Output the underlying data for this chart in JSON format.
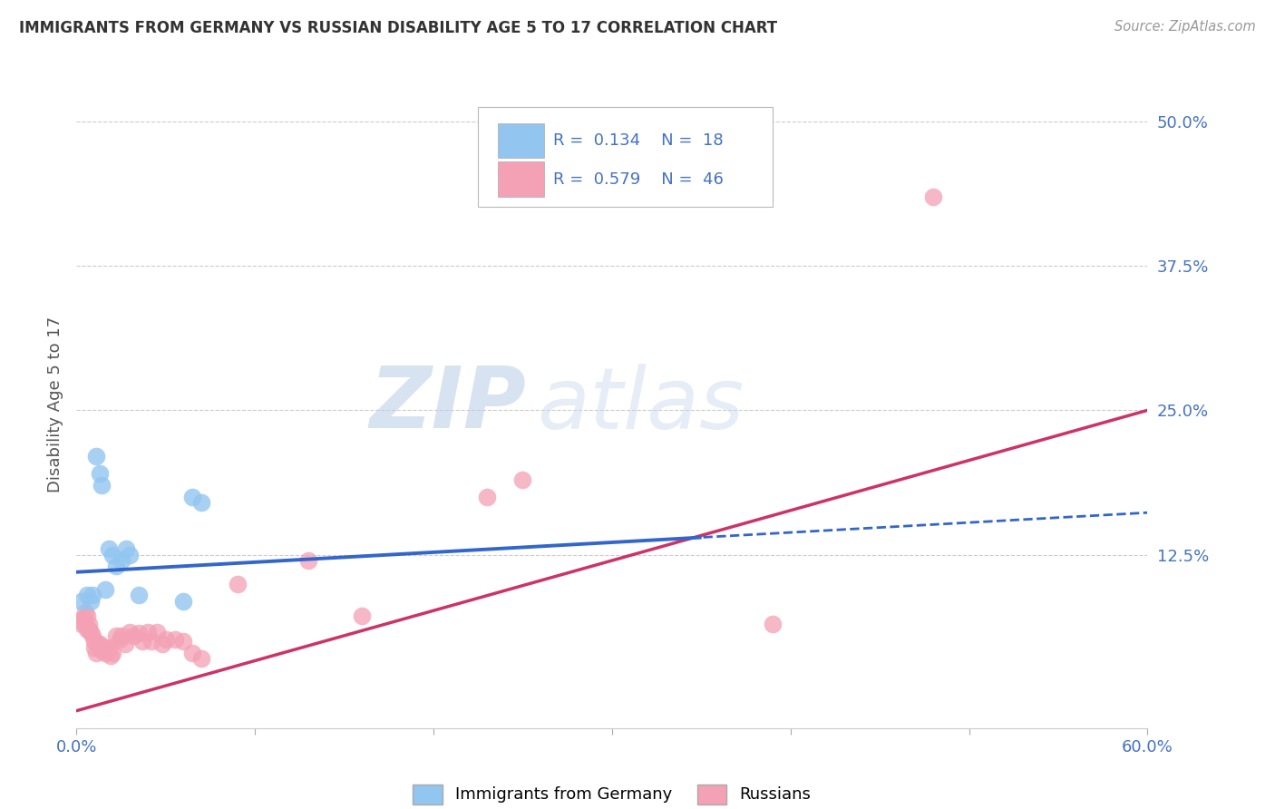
{
  "title": "IMMIGRANTS FROM GERMANY VS RUSSIAN DISABILITY AGE 5 TO 17 CORRELATION CHART",
  "source": "Source: ZipAtlas.com",
  "ylabel": "Disability Age 5 to 17",
  "xlim": [
    0.0,
    0.6
  ],
  "ylim": [
    -0.025,
    0.535
  ],
  "yticks": [
    0.0,
    0.125,
    0.25,
    0.375,
    0.5
  ],
  "ytick_labels": [
    "",
    "12.5%",
    "25.0%",
    "37.5%",
    "50.0%"
  ],
  "xticks": [
    0.0,
    0.1,
    0.2,
    0.3,
    0.4,
    0.5,
    0.6
  ],
  "xtick_labels": [
    "0.0%",
    "",
    "",
    "",
    "",
    "",
    "60.0%"
  ],
  "germany_R": 0.134,
  "germany_N": 18,
  "russian_R": 0.579,
  "russian_N": 46,
  "germany_color": "#92C5F0",
  "russian_color": "#F4A0B5",
  "trendline_germany_color": "#3366CC",
  "trendline_russian_color": "#CC3366",
  "germany_x": [
    0.003,
    0.006,
    0.008,
    0.009,
    0.011,
    0.013,
    0.014,
    0.016,
    0.018,
    0.02,
    0.022,
    0.025,
    0.028,
    0.03,
    0.035,
    0.06,
    0.065,
    0.07
  ],
  "germany_y": [
    0.085,
    0.09,
    0.085,
    0.09,
    0.21,
    0.195,
    0.185,
    0.095,
    0.13,
    0.125,
    0.115,
    0.12,
    0.13,
    0.125,
    0.09,
    0.085,
    0.175,
    0.17
  ],
  "russian_x": [
    0.002,
    0.003,
    0.004,
    0.005,
    0.006,
    0.006,
    0.007,
    0.007,
    0.008,
    0.009,
    0.01,
    0.01,
    0.011,
    0.012,
    0.013,
    0.014,
    0.015,
    0.016,
    0.017,
    0.018,
    0.019,
    0.02,
    0.022,
    0.024,
    0.025,
    0.027,
    0.03,
    0.032,
    0.035,
    0.037,
    0.04,
    0.042,
    0.045,
    0.048,
    0.05,
    0.055,
    0.06,
    0.065,
    0.07,
    0.09,
    0.13,
    0.16,
    0.23,
    0.25,
    0.39,
    0.48
  ],
  "russian_y": [
    0.068,
    0.065,
    0.07,
    0.075,
    0.072,
    0.06,
    0.065,
    0.06,
    0.058,
    0.055,
    0.05,
    0.045,
    0.04,
    0.048,
    0.048,
    0.042,
    0.045,
    0.04,
    0.043,
    0.045,
    0.038,
    0.04,
    0.055,
    0.052,
    0.055,
    0.048,
    0.058,
    0.055,
    0.057,
    0.05,
    0.058,
    0.05,
    0.058,
    0.048,
    0.052,
    0.052,
    0.05,
    0.04,
    0.035,
    0.1,
    0.12,
    0.072,
    0.175,
    0.19,
    0.065,
    0.435
  ],
  "watermark_zip": "ZIP",
  "watermark_atlas": "atlas",
  "background_color": "#FFFFFF",
  "grid_color": "#CCCCCC",
  "grid_style": "--"
}
